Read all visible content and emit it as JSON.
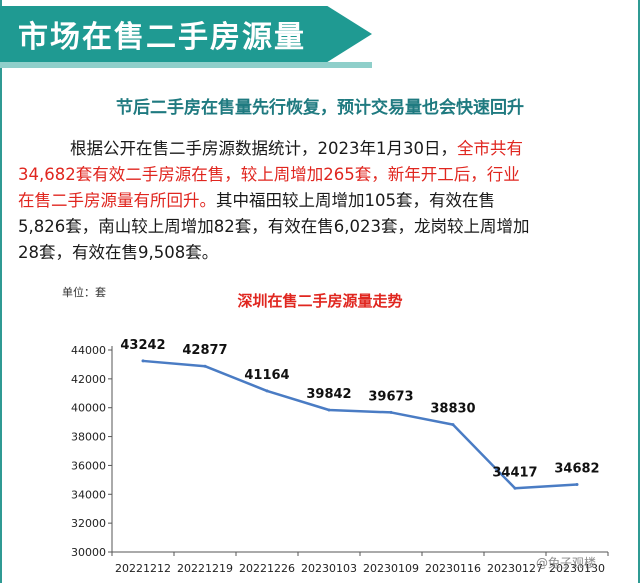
{
  "header": {
    "title": "市场在售二手房源量",
    "subtitle": "节后二手房在售量先行恢复，预计交易量也会快速回升"
  },
  "paragraph": {
    "line1_normal": "根据公开在售二手房源数据统计，2023年1月30日，",
    "line1_red": "全市共有",
    "line2_red": "34,682套有效二手房源在售，较上周增加265套，新年开工后，行业",
    "line3_red": "在售二手房源量有所回升。",
    "line3_normal": "其中福田较上周增加105套，有效在售",
    "line4_normal": "5,826套，南山较上周增加82套，有效在售6,023套，龙岗较上周增加",
    "line5_normal": "28套，有效在售9,508套。"
  },
  "chart_data": {
    "type": "line",
    "title": "深圳在售二手房源量走势",
    "unit_label": "单位：套",
    "categories": [
      "20221212",
      "20221219",
      "20221226",
      "20230103",
      "20230109",
      "20230116",
      "20230127",
      "20230130"
    ],
    "series": [
      {
        "values": [
          43242,
          42877,
          41164,
          39842,
          39673,
          38830,
          34417,
          34682
        ],
        "color": "#4a7cc4"
      }
    ],
    "ylim": [
      30000,
      44000
    ],
    "yticks": [
      30000,
      32000,
      34000,
      36000,
      38000,
      40000,
      42000,
      44000
    ],
    "grid": false,
    "data_labels": true
  },
  "watermark": "@兔子观楼",
  "colors": {
    "accent": "#1f9a92",
    "highlight": "#e0261f",
    "line": "#4a7cc4"
  }
}
